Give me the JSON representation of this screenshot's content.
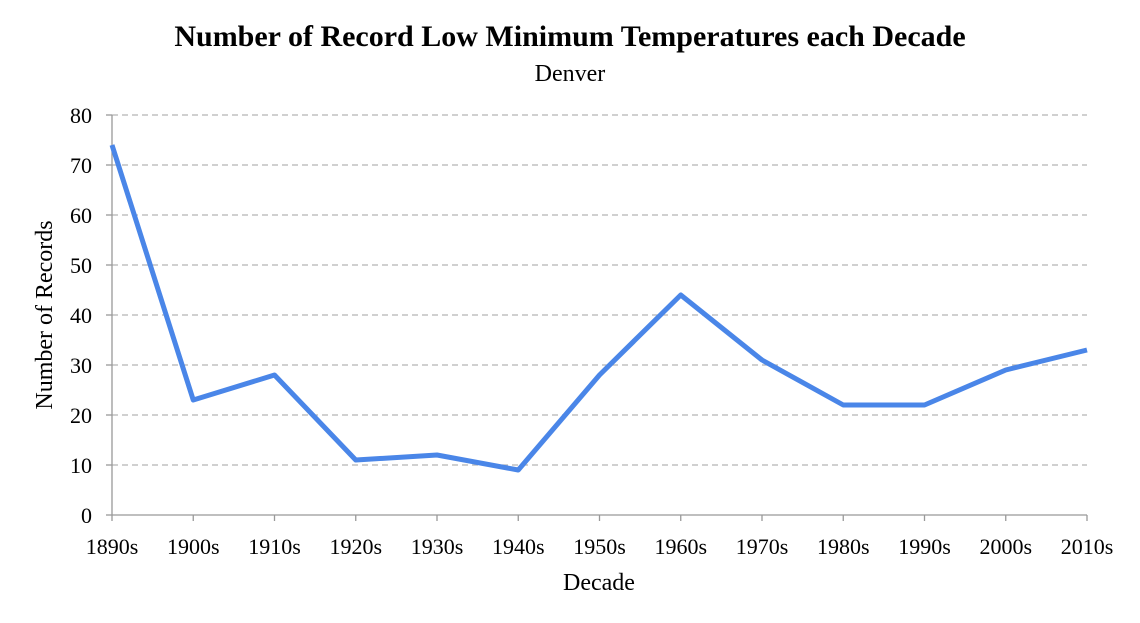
{
  "chart_data": {
    "type": "line",
    "title": "Number of Record Low Minimum Temperatures each Decade",
    "subtitle": "Denver",
    "xlabel": "Decade",
    "ylabel": "Number of Records",
    "categories": [
      "1890s",
      "1900s",
      "1910s",
      "1920s",
      "1930s",
      "1940s",
      "1950s",
      "1960s",
      "1970s",
      "1980s",
      "1990s",
      "2000s",
      "2010s"
    ],
    "series": [
      {
        "values": [
          74,
          23,
          28,
          11,
          12,
          9,
          28,
          44,
          31,
          22,
          22,
          29,
          33
        ],
        "color": "#4a86e8"
      }
    ],
    "ylim": [
      0,
      80
    ],
    "yticks": [
      0,
      10,
      20,
      30,
      40,
      50,
      60,
      70,
      80
    ],
    "grid": true,
    "legend": "none"
  }
}
